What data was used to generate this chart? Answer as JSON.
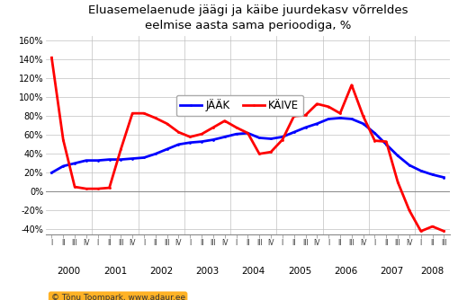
{
  "title": "Eluasemelaenude jäägi ja käibe juurdekasv võrreldes\neelmise aasta sama perioodiga, %",
  "legend_labels": [
    "JÄÄK",
    "KÄIVE"
  ],
  "line_colors": [
    "#0000FF",
    "#FF0000"
  ],
  "background_color": "#FFFFFF",
  "grid_color": "#C0C0C0",
  "ylim": [
    -0.45,
    1.65
  ],
  "yticks": [
    -0.4,
    -0.2,
    0.0,
    0.2,
    0.4,
    0.6,
    0.8,
    1.0,
    1.2,
    1.4,
    1.6
  ],
  "watermark": "© Tõnu Toompark, www.adaur.ee",
  "quarter_labels": [
    "I",
    "II",
    "III",
    "IV",
    "I",
    "II",
    "III",
    "IV",
    "I",
    "II",
    "III",
    "IV",
    "I",
    "II",
    "III",
    "IV",
    "I",
    "II",
    "III",
    "IV",
    "I",
    "II",
    "III",
    "IV",
    "I",
    "II",
    "III",
    "IV",
    "I",
    "II",
    "III",
    "IV",
    "I",
    "II",
    "III"
  ],
  "year_labels": [
    "2000",
    "2001",
    "2002",
    "2003",
    "2004",
    "2005",
    "2006",
    "2007",
    "2008"
  ],
  "year_positions": [
    1.5,
    5.5,
    9.5,
    13.5,
    17.5,
    21.5,
    25.5,
    29.5,
    33.0
  ],
  "year_boundaries": [
    3.5,
    7.5,
    11.5,
    15.5,
    19.5,
    23.5,
    27.5,
    31.5
  ],
  "jaak": [
    0.2,
    0.27,
    0.3,
    0.33,
    0.33,
    0.34,
    0.34,
    0.35,
    0.36,
    0.4,
    0.45,
    0.5,
    0.52,
    0.53,
    0.55,
    0.58,
    0.61,
    0.62,
    0.57,
    0.56,
    0.58,
    0.63,
    0.68,
    0.72,
    0.77,
    0.78,
    0.77,
    0.72,
    0.62,
    0.5,
    0.38,
    0.28,
    0.22,
    0.18,
    0.15
  ],
  "kaive": [
    1.42,
    0.55,
    0.05,
    0.03,
    0.03,
    0.04,
    0.45,
    0.83,
    0.83,
    0.78,
    0.72,
    0.63,
    0.58,
    0.61,
    0.68,
    0.75,
    0.68,
    0.62,
    0.4,
    0.42,
    0.55,
    0.8,
    0.81,
    0.93,
    0.9,
    0.83,
    1.13,
    0.8,
    0.54,
    0.53,
    0.1,
    -0.2,
    -0.42,
    -0.37,
    -0.42
  ]
}
